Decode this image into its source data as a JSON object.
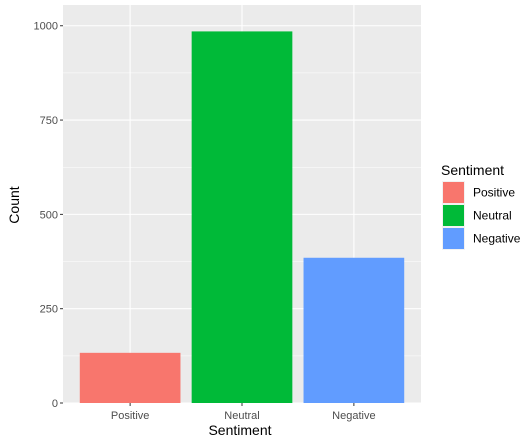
{
  "chart_data": {
    "type": "bar",
    "categories": [
      "Positive",
      "Neutral",
      "Negative"
    ],
    "values": [
      133,
      985,
      385
    ],
    "colors": [
      "#F8766D",
      "#00BA38",
      "#619CFF"
    ],
    "xlabel": "Sentiment",
    "ylabel": "Count",
    "ylim": [
      0,
      1055
    ],
    "yticks": [
      0,
      250,
      500,
      750,
      1000
    ],
    "ytick_labels": [
      "0",
      "250",
      "500",
      "750",
      "1000"
    ],
    "grid": true,
    "panel_background": "#EBEBEB",
    "grid_color": "#FFFFFF",
    "legend": {
      "title": "Sentiment",
      "position": "right",
      "items": [
        {
          "label": "Positive",
          "color": "#F8766D"
        },
        {
          "label": "Neutral",
          "color": "#00BA38"
        },
        {
          "label": "Negative",
          "color": "#619CFF"
        }
      ]
    }
  }
}
